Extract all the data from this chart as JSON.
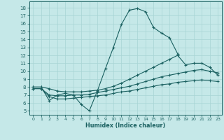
{
  "xlabel": "Humidex (Indice chaleur)",
  "background_color": "#c5e8e8",
  "grid_color": "#a8d4d4",
  "line_color": "#1a6060",
  "xlim": [
    -0.5,
    23.5
  ],
  "ylim": [
    4.5,
    18.8
  ],
  "xticks": [
    0,
    1,
    2,
    3,
    4,
    5,
    6,
    7,
    8,
    9,
    10,
    11,
    12,
    13,
    14,
    15,
    16,
    17,
    18,
    19,
    20,
    21,
    22,
    23
  ],
  "yticks": [
    5,
    6,
    7,
    8,
    9,
    10,
    11,
    12,
    13,
    14,
    15,
    16,
    17,
    18
  ],
  "series": [
    {
      "x": [
        0,
        1,
        2,
        3,
        4,
        5,
        6,
        7,
        8,
        9,
        10,
        11,
        12,
        13,
        14,
        15,
        16,
        17,
        18
      ],
      "y": [
        8.0,
        8.0,
        6.3,
        7.0,
        7.2,
        7.0,
        5.8,
        5.0,
        7.5,
        10.3,
        13.0,
        15.9,
        17.7,
        17.9,
        17.5,
        15.5,
        14.8,
        14.2,
        12.2
      ]
    },
    {
      "x": [
        0,
        1,
        2,
        3,
        4,
        5,
        6,
        7,
        8,
        9,
        10,
        11,
        12,
        13,
        14,
        15,
        16,
        17,
        18,
        19,
        20,
        21,
        22,
        23
      ],
      "y": [
        8.0,
        8.0,
        7.8,
        7.5,
        7.4,
        7.4,
        7.4,
        7.5,
        7.6,
        7.8,
        8.1,
        8.5,
        9.0,
        9.5,
        10.0,
        10.5,
        11.0,
        11.5,
        12.0,
        10.8,
        11.0,
        11.0,
        10.5,
        9.5
      ]
    },
    {
      "x": [
        0,
        1,
        2,
        3,
        4,
        5,
        6,
        7,
        8,
        9,
        10,
        11,
        12,
        13,
        14,
        15,
        16,
        17,
        18,
        19,
        20,
        21,
        22,
        23
      ],
      "y": [
        7.8,
        7.8,
        7.0,
        6.9,
        6.9,
        7.0,
        7.0,
        7.1,
        7.3,
        7.5,
        7.7,
        7.9,
        8.1,
        8.4,
        8.7,
        9.0,
        9.3,
        9.5,
        9.7,
        9.9,
        10.1,
        10.2,
        10.0,
        9.8
      ]
    },
    {
      "x": [
        0,
        1,
        2,
        3,
        4,
        5,
        6,
        7,
        8,
        9,
        10,
        11,
        12,
        13,
        14,
        15,
        16,
        17,
        18,
        19,
        20,
        21,
        22,
        23
      ],
      "y": [
        7.8,
        7.8,
        6.8,
        6.5,
        6.5,
        6.6,
        6.7,
        6.8,
        6.9,
        7.0,
        7.2,
        7.4,
        7.5,
        7.7,
        7.9,
        8.1,
        8.3,
        8.4,
        8.6,
        8.7,
        8.8,
        8.9,
        8.8,
        8.7
      ]
    }
  ]
}
